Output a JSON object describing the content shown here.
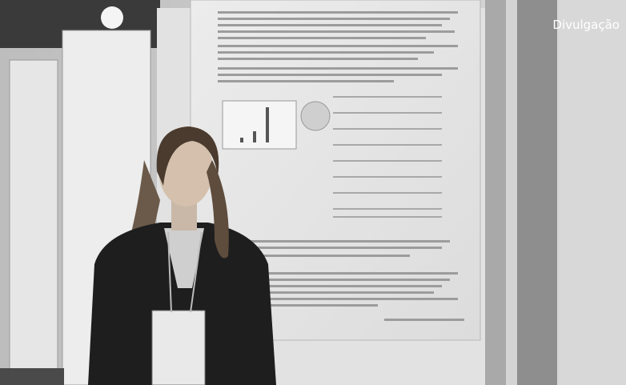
{
  "credit": "Divulgação"
}
